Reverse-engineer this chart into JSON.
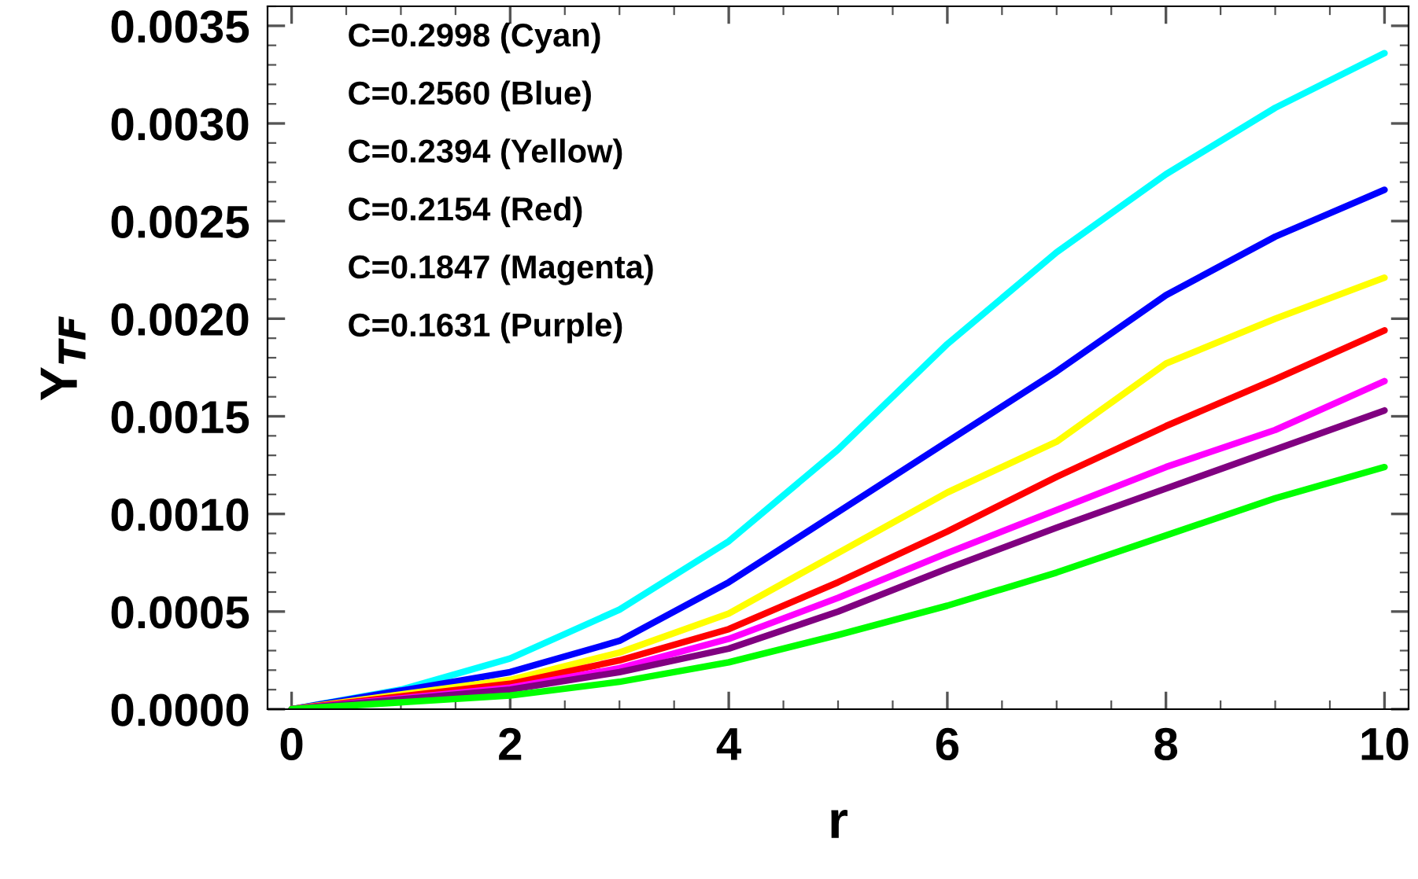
{
  "chart_data": {
    "type": "line",
    "xlabel": "r",
    "ylabel": "Y$_{TF}$",
    "x": [
      0,
      2,
      3,
      4,
      5,
      6,
      7,
      8,
      9,
      10
    ],
    "series": [
      {
        "color": "#00ffff",
        "x": [
          0,
          1,
          2,
          3,
          4,
          5,
          6,
          7,
          8,
          9,
          10
        ],
        "values": [
          0,
          0.0001,
          0.00026,
          0.00051,
          0.00086,
          0.00133,
          0.00187,
          0.00234,
          0.00274,
          0.00308,
          0.00336
        ]
      },
      {
        "color": "#0000ff",
        "values": [
          0,
          0.00019,
          0.00035,
          0.00065,
          0.00101,
          0.00137,
          0.00173,
          0.00212,
          0.00242,
          0.00266
        ]
      },
      {
        "color": "#ffff00",
        "values": [
          0,
          0.00015,
          0.00029,
          0.00049,
          0.0008,
          0.00111,
          0.00137,
          0.00177,
          0.002,
          0.00221
        ]
      },
      {
        "color": "#ff0000",
        "values": [
          0,
          0.00013,
          0.00025,
          0.00041,
          0.00065,
          0.00091,
          0.00119,
          0.00145,
          0.00169,
          0.00194
        ]
      },
      {
        "color": "#ff00ff",
        "values": [
          0,
          0.00011,
          0.00021,
          0.00036,
          0.00057,
          0.0008,
          0.00102,
          0.00124,
          0.00143,
          0.00168
        ]
      },
      {
        "color": "#800080",
        "values": [
          0,
          0.0001,
          0.00019,
          0.00031,
          0.0005,
          0.00072,
          0.00093,
          0.00113,
          0.00133,
          0.00153
        ]
      },
      {
        "color": "#00ff00",
        "values": [
          0,
          7e-05,
          0.00014,
          0.00024,
          0.00038,
          0.00053,
          0.0007,
          0.00089,
          0.00108,
          0.00124
        ]
      }
    ],
    "xlim": [
      -0.22,
      10.22
    ],
    "xticks": [
      0,
      2,
      4,
      6,
      8,
      10
    ],
    "ylim": [
      0,
      0.0036
    ],
    "yticks": [
      {
        "value": 0,
        "label": "0.0000"
      },
      {
        "value": 0.0005,
        "label": "0.0005"
      },
      {
        "value": 0.001,
        "label": "0.0010"
      },
      {
        "value": 0.0015,
        "label": "0.0015"
      },
      {
        "value": 0.002,
        "label": "0.0020"
      },
      {
        "value": 0.0025,
        "label": "0.0025"
      },
      {
        "value": 0.003,
        "label": "0.0030"
      },
      {
        "value": 0.0035,
        "label": "0.0035"
      }
    ],
    "grid": false,
    "legend": false,
    "marker": "none",
    "line_style": "solid",
    "annotations": [
      "C=0.2998 (Cyan)",
      "C=0.2560 (Blue)",
      "C=0.2394 (Yellow)",
      "C=0.2154 (Red)",
      "C=0.1847 (Magenta)",
      "C=0.1631 (Purple)"
    ]
  }
}
